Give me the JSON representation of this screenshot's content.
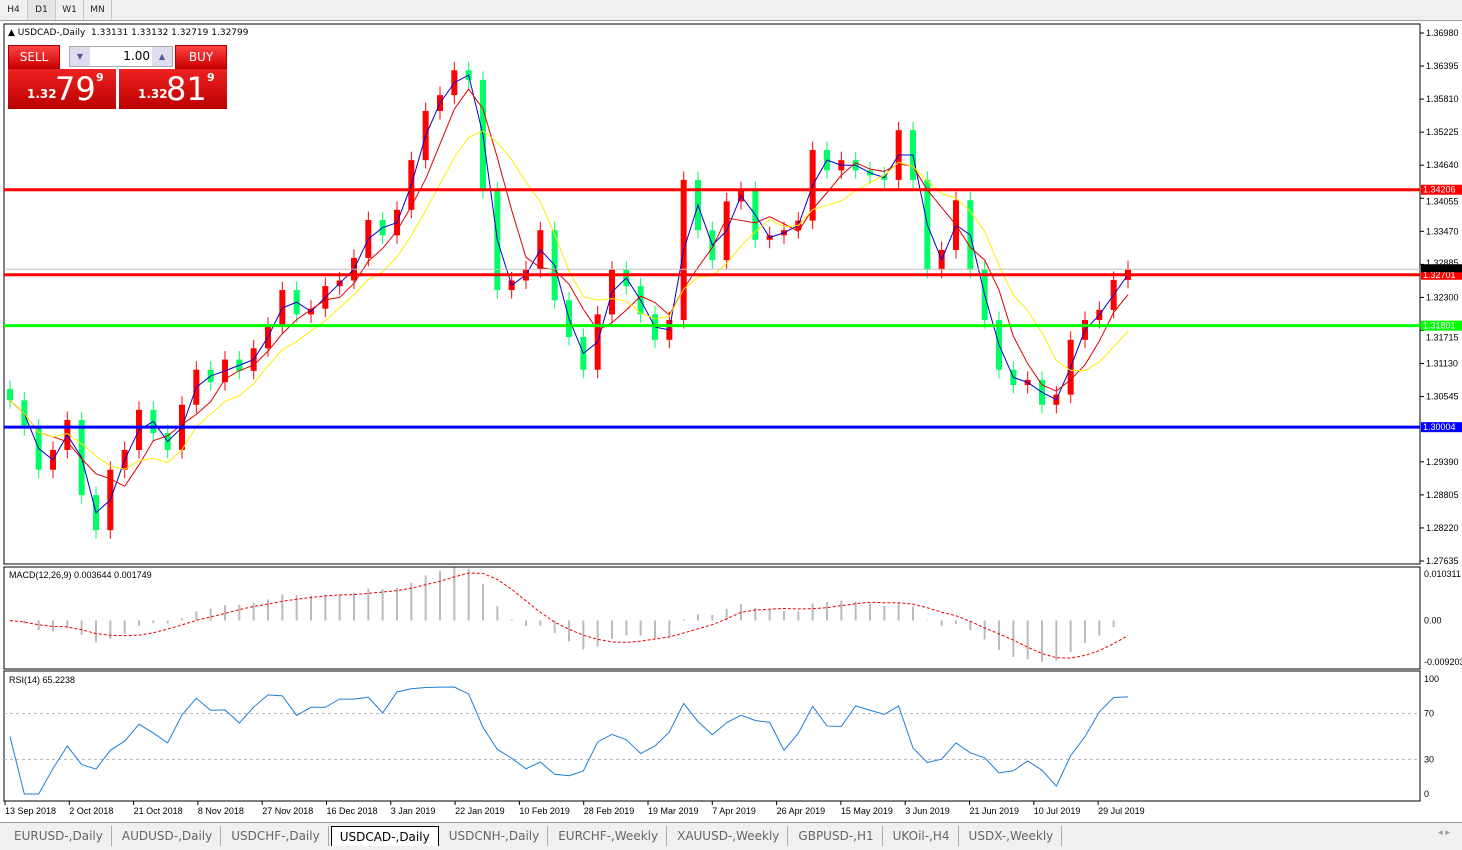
{
  "toolbar": {
    "timeframes": [
      "H4",
      "D1",
      "W1",
      "MN"
    ],
    "active": "D1"
  },
  "chart": {
    "title": "USDCAD-,Daily",
    "ohlc": "1.33131 1.33132 1.32719 1.32799"
  },
  "trade": {
    "sell_label": "SELL",
    "buy_label": "BUY",
    "lot": "1.00",
    "sell_price": {
      "prefix": "1.32",
      "big": "79",
      "sup": "9"
    },
    "buy_price": {
      "prefix": "1.32",
      "big": "81",
      "sup": "9"
    }
  },
  "colors": {
    "up": "#ff0000",
    "down": "#00ff66",
    "ma_fast": "#0000cc",
    "ma_mid": "#dd0000",
    "ma_slow": "#ffee00"
  },
  "chart_data": {
    "type": "candlestick",
    "symbol": "USDCAD-",
    "timeframe": "Daily",
    "ylim": [
      1.27635,
      1.3698
    ],
    "y_ticks": [
      "1.36980",
      "1.36395",
      "1.35810",
      "1.35225",
      "1.34640",
      "1.34055",
      "1.33470",
      "1.32885",
      "1.32300",
      "1.31715",
      "1.31130",
      "1.30545",
      "1.29390",
      "1.28805",
      "1.28220",
      "1.27635"
    ],
    "x_ticks": [
      "13 Sep 2018",
      "2 Oct 2018",
      "21 Oct 2018",
      "8 Nov 2018",
      "27 Nov 2018",
      "16 Dec 2018",
      "3 Jan 2019",
      "22 Jan 2019",
      "10 Feb 2019",
      "28 Feb 2019",
      "19 Mar 2019",
      "7 Apr 2019",
      "26 Apr 2019",
      "15 May 2019",
      "3 Jun 2019",
      "21 Jun 2019",
      "10 Jul 2019",
      "29 Jul 2019"
    ],
    "closes": [
      1.3048,
      1.3,
      1.2925,
      1.296,
      1.3013,
      1.288,
      1.2818,
      1.2925,
      1.296,
      1.3031,
      1.299,
      1.296,
      1.304,
      1.3102,
      1.308,
      1.312,
      1.31,
      1.314,
      1.318,
      1.3243,
      1.32,
      1.321,
      1.325,
      1.326,
      1.33,
      1.3367,
      1.334,
      1.3385,
      1.3473,
      1.356,
      1.3588,
      1.3632,
      1.3615,
      1.342,
      1.3243,
      1.326,
      1.328,
      1.3349,
      1.3225,
      1.316,
      1.3102,
      1.32,
      1.3279,
      1.325,
      1.32,
      1.3155,
      1.319,
      1.3438,
      1.3349,
      1.3296,
      1.34,
      1.342,
      1.3332,
      1.334,
      1.3349,
      1.3366,
      1.3491,
      1.3455,
      1.3473,
      1.3455,
      1.3446,
      1.3438,
      1.3526,
      1.3438,
      1.3279,
      1.3314,
      1.3402,
      1.3279,
      1.319,
      1.3102,
      1.3075,
      1.3084,
      1.304,
      1.3058,
      1.3155,
      1.319,
      1.3208,
      1.3261,
      1.328
    ],
    "horizontal_lines": [
      {
        "value": "1.34206",
        "color": "#ff0000"
      },
      {
        "value": "1.32701",
        "color": "#ff0000"
      },
      {
        "value": "1.31801",
        "color": "#00ff00"
      },
      {
        "value": "1.30004",
        "color": "#0000ff"
      }
    ],
    "current_price": "1.32799"
  },
  "macd": {
    "label": "MACD(12,26,9) 0.003644 0.001749",
    "max": "0.010311",
    "zero": "0.00",
    "min": "-0.009203"
  },
  "rsi": {
    "label": "RSI(14) 65.2238",
    "levels": [
      "100",
      "70",
      "30",
      "0"
    ]
  },
  "tabs": [
    "EURUSD-,Daily",
    "AUDUSD-,Daily",
    "USDCHF-,Daily",
    "USDCAD-,Daily",
    "USDCNH-,Daily",
    "EURCHF-,Weekly",
    "XAUUSD-,Weekly",
    "GBPUSD-,H1",
    "UKOil-,H4",
    "USDX-,Weekly"
  ],
  "active_tab": "USDCAD-,Daily"
}
